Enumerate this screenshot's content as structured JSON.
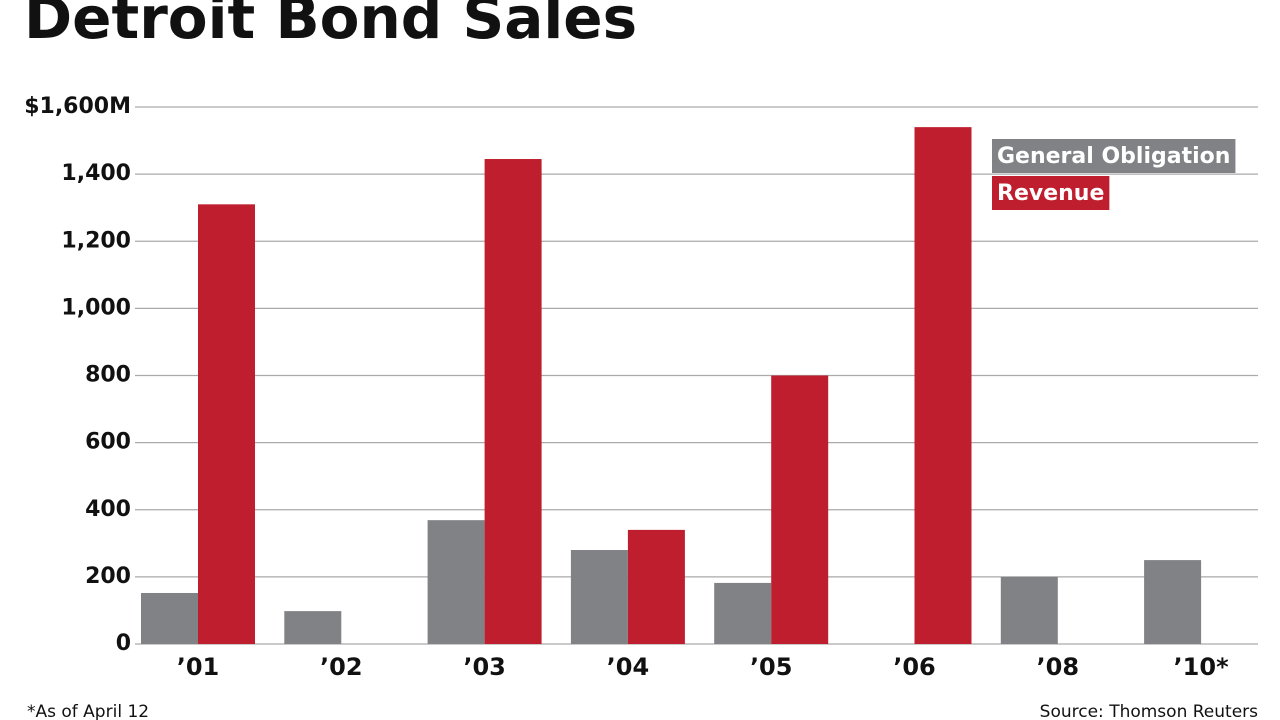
{
  "chart_data": {
    "type": "bar",
    "title": "Detroit Bond Sales",
    "categories": [
      "’01",
      "’02",
      "’03",
      "’04",
      "’05",
      "’06",
      "’08",
      "’10*"
    ],
    "series": [
      {
        "name": "General Obligation",
        "color": "#818286",
        "values": [
          152,
          98,
          369,
          280,
          182,
          null,
          200,
          250
        ]
      },
      {
        "name": "Revenue",
        "color": "#be1e2d",
        "values": [
          1310,
          null,
          1445,
          340,
          800,
          1540,
          null,
          null
        ]
      }
    ],
    "ylim": [
      0,
      1600
    ],
    "yticks": [
      0,
      200,
      400,
      600,
      800,
      {
        "value": 1000,
        "label": "1,000"
      },
      {
        "value": 1200,
        "label": "1,200"
      },
      {
        "value": 1400,
        "label": "1,400"
      },
      {
        "value": 1600,
        "label": "$1,600M"
      }
    ],
    "grid": true,
    "legend": "top-right",
    "footnote": "*As of April 12",
    "source": "Source: Thomson Reuters"
  }
}
